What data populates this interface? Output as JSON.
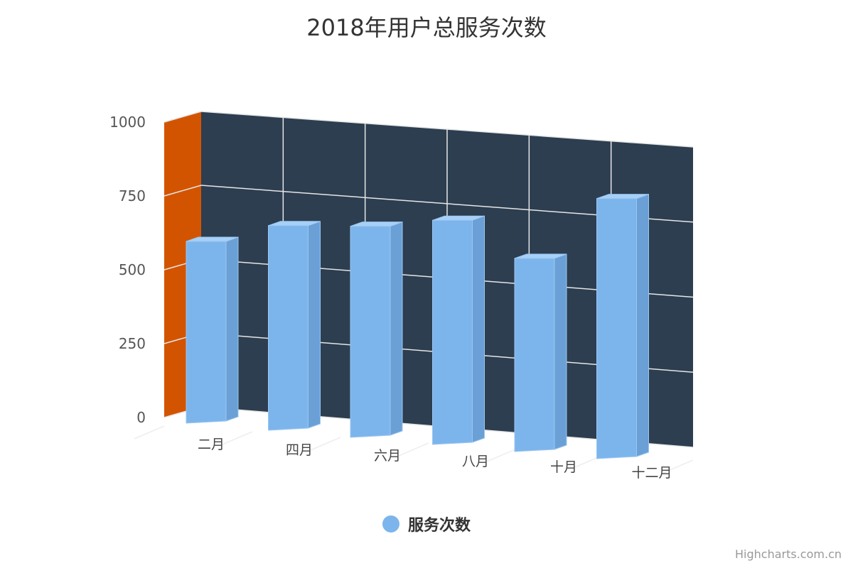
{
  "chart_data": {
    "type": "bar",
    "title": "2018年用户总服务次数",
    "categories": [
      "二月",
      "四月",
      "六月",
      "八月",
      "十月",
      "十二月"
    ],
    "series": [
      {
        "name": "服务次数",
        "values": [
          550,
          620,
          640,
          680,
          585,
          790
        ],
        "color": "#7cb5ec"
      }
    ],
    "ylim": [
      0,
      1000
    ],
    "yticks": [
      0,
      250,
      500,
      750,
      1000
    ],
    "grid": true,
    "legend_position": "bottom",
    "options3d": true,
    "back_wall_color": "#2c3e50",
    "side_wall_color": "#d35400"
  },
  "credits": "Highcharts.com.cn"
}
